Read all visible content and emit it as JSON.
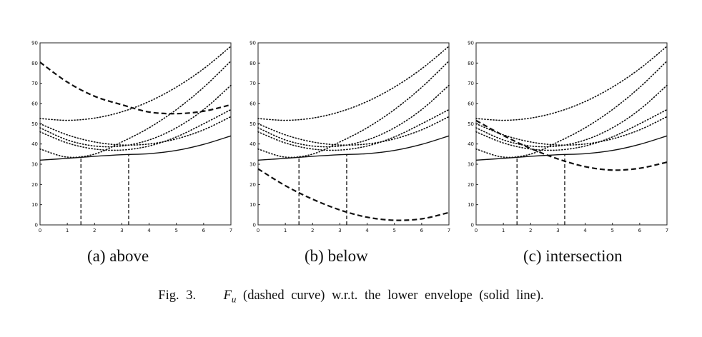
{
  "figure": {
    "caption_prefix": "Fig. 3.",
    "caption_fu": "F",
    "caption_fu_sub": "u",
    "caption_rest": "(dashed curve) w.r.t. the lower envelope (solid line)."
  },
  "chart_data": [
    {
      "type": "line",
      "subcaption": "(a) above",
      "xlim": [
        0,
        7
      ],
      "ylim": [
        0,
        90
      ],
      "xticks": [
        0,
        1,
        2,
        3,
        4,
        5,
        6,
        7
      ],
      "yticks": [
        0,
        10,
        20,
        30,
        40,
        50,
        60,
        70,
        80,
        90
      ],
      "grid": false,
      "series": [
        {
          "style": "dotted",
          "x": [
            0,
            1,
            2,
            3,
            4,
            5,
            6,
            7
          ],
          "y": [
            52.6,
            51.7,
            52.8,
            55.9,
            61,
            68.1,
            77.2,
            88.3
          ]
        },
        {
          "style": "dotted",
          "x": [
            0,
            1,
            2,
            3,
            4,
            5,
            6,
            7
          ],
          "y": [
            48,
            42,
            39,
            39,
            42,
            48,
            57,
            69
          ]
        },
        {
          "style": "dotted",
          "x": [
            0,
            1,
            2,
            3,
            4,
            5,
            6,
            7
          ],
          "y": [
            50,
            44.5,
            41,
            39.5,
            40,
            42.5,
            47,
            53.5
          ]
        },
        {
          "style": "dotted",
          "x": [
            0,
            1,
            2,
            3,
            4,
            5,
            6,
            7
          ],
          "y": [
            37.5,
            33.5,
            35,
            41,
            48,
            57,
            68,
            81
          ]
        },
        {
          "style": "dotted",
          "x": [
            0,
            1,
            2,
            3,
            4,
            5,
            6,
            7
          ],
          "y": [
            46,
            40.5,
            37.5,
            37,
            39,
            43.5,
            50,
            57
          ]
        },
        {
          "style": "solid",
          "x": [
            0,
            1,
            2,
            3,
            4,
            5,
            6,
            7
          ],
          "y": [
            32,
            32.9,
            33.9,
            34.7,
            35.2,
            36.8,
            39.8,
            44
          ]
        },
        {
          "style": "dashed",
          "x": [
            0,
            1,
            2,
            3,
            4,
            5,
            6,
            7
          ],
          "y": [
            80.4,
            70.6,
            63.6,
            59.4,
            55.8,
            55,
            56.2,
            59.4
          ]
        },
        {
          "style": "dashed-drop",
          "x": [
            1.5,
            1.5
          ],
          "y": [
            0,
            34
          ]
        },
        {
          "style": "dashed-drop",
          "x": [
            3.25,
            3.25
          ],
          "y": [
            0,
            35
          ]
        }
      ]
    },
    {
      "type": "line",
      "subcaption": "(b) below",
      "xlim": [
        0,
        7
      ],
      "ylim": [
        0,
        90
      ],
      "xticks": [
        0,
        1,
        2,
        3,
        4,
        5,
        6,
        7
      ],
      "yticks": [
        0,
        10,
        20,
        30,
        40,
        50,
        60,
        70,
        80,
        90
      ],
      "grid": false,
      "series": [
        {
          "style": "dotted",
          "x": [
            0,
            1,
            2,
            3,
            4,
            5,
            6,
            7
          ],
          "y": [
            52.6,
            51.7,
            52.8,
            55.9,
            61,
            68.1,
            77.2,
            88.3
          ]
        },
        {
          "style": "dotted",
          "x": [
            0,
            1,
            2,
            3,
            4,
            5,
            6,
            7
          ],
          "y": [
            48,
            42,
            39,
            39,
            42,
            48,
            57,
            69
          ]
        },
        {
          "style": "dotted",
          "x": [
            0,
            1,
            2,
            3,
            4,
            5,
            6,
            7
          ],
          "y": [
            50,
            44.5,
            41,
            39.5,
            40,
            42.5,
            47,
            53.5
          ]
        },
        {
          "style": "dotted",
          "x": [
            0,
            1,
            2,
            3,
            4,
            5,
            6,
            7
          ],
          "y": [
            37.5,
            33.5,
            35,
            41,
            48,
            57,
            68,
            81
          ]
        },
        {
          "style": "dotted",
          "x": [
            0,
            1,
            2,
            3,
            4,
            5,
            6,
            7
          ],
          "y": [
            46,
            40.5,
            37.5,
            37,
            39,
            43.5,
            50,
            57
          ]
        },
        {
          "style": "solid",
          "x": [
            0,
            1,
            2,
            3,
            4,
            5,
            6,
            7
          ],
          "y": [
            32,
            32.9,
            33.9,
            34.7,
            35.2,
            36.8,
            39.8,
            44
          ]
        },
        {
          "style": "dashed",
          "x": [
            0,
            1,
            2,
            3,
            4,
            5,
            6,
            7
          ],
          "y": [
            27.7,
            19.4,
            12.7,
            7.4,
            3.8,
            2.3,
            3,
            6.1
          ]
        },
        {
          "style": "dashed-drop",
          "x": [
            1.5,
            1.5
          ],
          "y": [
            0,
            34
          ]
        },
        {
          "style": "dashed-drop",
          "x": [
            3.25,
            3.25
          ],
          "y": [
            0,
            35
          ]
        }
      ]
    },
    {
      "type": "line",
      "subcaption": "(c) intersection",
      "xlim": [
        0,
        7
      ],
      "ylim": [
        0,
        90
      ],
      "xticks": [
        0,
        1,
        2,
        3,
        4,
        5,
        6,
        7
      ],
      "yticks": [
        0,
        10,
        20,
        30,
        40,
        50,
        60,
        70,
        80,
        90
      ],
      "grid": false,
      "series": [
        {
          "style": "dotted",
          "x": [
            0,
            1,
            2,
            3,
            4,
            5,
            6,
            7
          ],
          "y": [
            52.6,
            51.7,
            52.8,
            55.9,
            61,
            68.1,
            77.2,
            88.3
          ]
        },
        {
          "style": "dotted",
          "x": [
            0,
            1,
            2,
            3,
            4,
            5,
            6,
            7
          ],
          "y": [
            48,
            42,
            39,
            39,
            42,
            48,
            57,
            69
          ]
        },
        {
          "style": "dotted",
          "x": [
            0,
            1,
            2,
            3,
            4,
            5,
            6,
            7
          ],
          "y": [
            50,
            44.5,
            41,
            39.5,
            40,
            42.5,
            47,
            53.5
          ]
        },
        {
          "style": "dotted",
          "x": [
            0,
            1,
            2,
            3,
            4,
            5,
            6,
            7
          ],
          "y": [
            37.5,
            33.5,
            35,
            41,
            48,
            57,
            68,
            81
          ]
        },
        {
          "style": "dotted",
          "x": [
            0,
            1,
            2,
            3,
            4,
            5,
            6,
            7
          ],
          "y": [
            46,
            40.5,
            37.5,
            37,
            39,
            43.5,
            50,
            57
          ]
        },
        {
          "style": "solid",
          "x": [
            0,
            1,
            2,
            3,
            4,
            5,
            6,
            7
          ],
          "y": [
            32,
            32.9,
            33.9,
            34.7,
            35.2,
            36.8,
            39.8,
            44
          ]
        },
        {
          "style": "dashed",
          "x": [
            0,
            1,
            2,
            3,
            4,
            5,
            6,
            7
          ],
          "y": [
            51.6,
            44.2,
            37.8,
            32.6,
            28.8,
            27.1,
            28,
            31
          ]
        },
        {
          "style": "dashed-drop",
          "x": [
            1.5,
            1.5
          ],
          "y": [
            0,
            34
          ]
        },
        {
          "style": "dashed-drop",
          "x": [
            3.25,
            3.25
          ],
          "y": [
            0,
            35
          ]
        }
      ]
    }
  ]
}
